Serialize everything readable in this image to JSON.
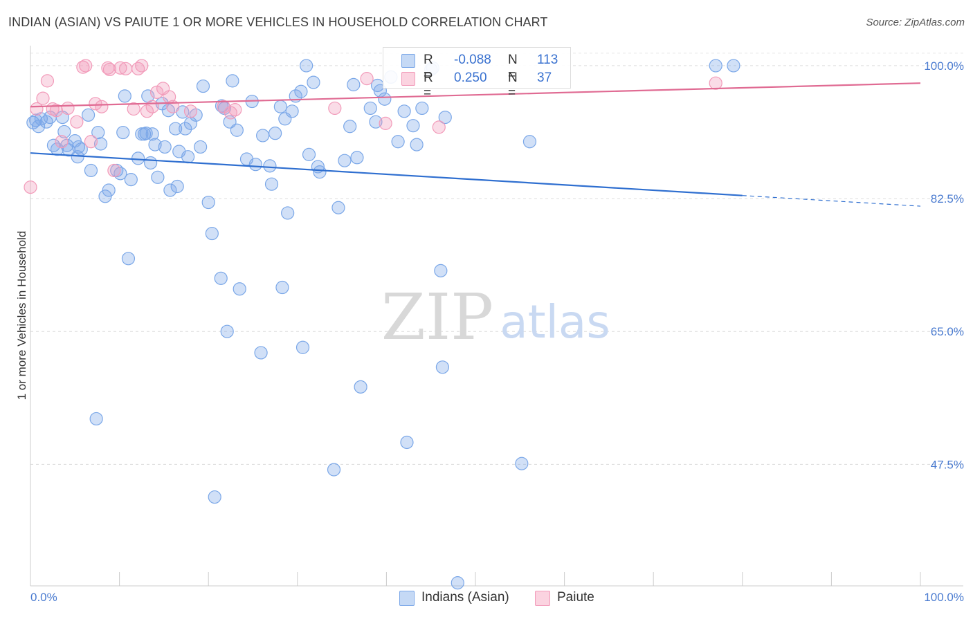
{
  "header": {
    "title": "INDIAN (ASIAN) VS PAIUTE 1 OR MORE VEHICLES IN HOUSEHOLD CORRELATION CHART",
    "source": "Source: ZipAtlas.com"
  },
  "watermark": {
    "zip": "ZIP",
    "atlas": "atlas"
  },
  "legend": {
    "rows": [
      {
        "r_label": "R =",
        "r_value": "-0.088",
        "n_label": "N =",
        "n_value": "113",
        "color": "#7aa7e8"
      },
      {
        "r_label": "R =",
        "r_value": "0.250",
        "n_label": "N =",
        "n_value": "37",
        "color": "#f29ab9"
      }
    ]
  },
  "chart_data": {
    "type": "scatter",
    "title": "INDIAN (ASIAN) VS PAIUTE 1 OR MORE VEHICLES IN HOUSEHOLD CORRELATION CHART",
    "xlabel": "",
    "ylabel": "1 or more Vehicles in Household",
    "xlim": [
      0,
      100
    ],
    "ylim": [
      31.5,
      103
    ],
    "x_tick_labels": [
      "0.0%",
      "100.0%"
    ],
    "y_ticks": [
      47.5,
      65.0,
      82.5,
      100.0
    ],
    "y_tick_labels": [
      "47.5%",
      "65.0%",
      "82.5%",
      "100.0%"
    ],
    "grid": true,
    "legend_position": "bottom-center",
    "series": [
      {
        "name": "Indians (Asian)",
        "color": "#7aa7e8",
        "line_color": "#2f6fd0",
        "trend": {
          "x0": 0,
          "y0": 88.5,
          "x1": 80,
          "y1": 82.9,
          "dash_to": 100,
          "dash_y": 81.5
        },
        "points": [
          [
            0.3,
            92.5
          ],
          [
            0.6,
            92.8
          ],
          [
            1.2,
            93.0
          ],
          [
            1.8,
            92.6
          ],
          [
            2.2,
            93.2
          ],
          [
            3.0,
            89.0
          ],
          [
            3.6,
            93.2
          ],
          [
            3.8,
            91.3
          ],
          [
            4.1,
            89.5
          ],
          [
            4.3,
            88.9
          ],
          [
            5.0,
            90.1
          ],
          [
            5.3,
            88.0
          ],
          [
            5.7,
            89.0
          ],
          [
            6.5,
            93.5
          ],
          [
            6.8,
            86.2
          ],
          [
            7.6,
            91.2
          ],
          [
            7.9,
            89.7
          ],
          [
            8.4,
            82.8
          ],
          [
            8.8,
            83.6
          ],
          [
            9.7,
            86.2
          ],
          [
            10.1,
            85.8
          ],
          [
            10.4,
            91.2
          ],
          [
            10.6,
            96.0
          ],
          [
            11.0,
            74.6
          ],
          [
            11.3,
            85.0
          ],
          [
            12.1,
            87.8
          ],
          [
            12.5,
            91.0
          ],
          [
            12.8,
            91.0
          ],
          [
            13.0,
            91.1
          ],
          [
            13.2,
            96.0
          ],
          [
            13.5,
            87.2
          ],
          [
            13.7,
            91.0
          ],
          [
            14.0,
            89.6
          ],
          [
            14.3,
            85.3
          ],
          [
            14.8,
            95.0
          ],
          [
            15.1,
            89.3
          ],
          [
            15.5,
            94.1
          ],
          [
            15.7,
            83.6
          ],
          [
            16.3,
            91.7
          ],
          [
            16.7,
            88.7
          ],
          [
            17.1,
            93.9
          ],
          [
            17.4,
            91.7
          ],
          [
            17.7,
            88.0
          ],
          [
            18.0,
            92.4
          ],
          [
            18.6,
            93.5
          ],
          [
            19.1,
            89.3
          ],
          [
            19.4,
            97.3
          ],
          [
            20.0,
            82.0
          ],
          [
            20.4,
            77.9
          ],
          [
            21.4,
            72.0
          ],
          [
            21.5,
            94.7
          ],
          [
            21.8,
            94.4
          ],
          [
            22.1,
            65.0
          ],
          [
            22.4,
            92.6
          ],
          [
            22.7,
            98.0
          ],
          [
            23.2,
            91.5
          ],
          [
            23.5,
            70.6
          ],
          [
            24.3,
            87.7
          ],
          [
            24.9,
            95.3
          ],
          [
            25.3,
            87.0
          ],
          [
            25.9,
            62.2
          ],
          [
            26.1,
            90.8
          ],
          [
            26.9,
            86.8
          ],
          [
            27.1,
            84.4
          ],
          [
            27.5,
            91.1
          ],
          [
            28.1,
            94.6
          ],
          [
            28.3,
            70.8
          ],
          [
            28.6,
            93.0
          ],
          [
            28.9,
            80.6
          ],
          [
            29.4,
            94.0
          ],
          [
            29.8,
            96.0
          ],
          [
            30.4,
            96.6
          ],
          [
            30.6,
            62.9
          ],
          [
            31.0,
            100.0
          ],
          [
            31.3,
            88.3
          ],
          [
            31.8,
            97.8
          ],
          [
            32.3,
            86.7
          ],
          [
            32.5,
            86.0
          ],
          [
            34.1,
            46.8
          ],
          [
            34.6,
            81.3
          ],
          [
            35.3,
            87.5
          ],
          [
            35.9,
            92.0
          ],
          [
            36.3,
            97.5
          ],
          [
            36.7,
            87.9
          ],
          [
            37.1,
            57.7
          ],
          [
            38.2,
            94.4
          ],
          [
            38.8,
            92.6
          ],
          [
            39.0,
            97.4
          ],
          [
            39.3,
            96.7
          ],
          [
            39.8,
            95.6
          ],
          [
            40.5,
            98.5
          ],
          [
            41.3,
            90.0
          ],
          [
            42.0,
            94.0
          ],
          [
            42.3,
            50.4
          ],
          [
            43.0,
            92.1
          ],
          [
            43.4,
            89.6
          ],
          [
            44.0,
            94.4
          ],
          [
            45.0,
            99.5
          ],
          [
            45.2,
            99.7
          ],
          [
            46.1,
            73.0
          ],
          [
            46.3,
            60.3
          ],
          [
            46.6,
            93.2
          ],
          [
            48.0,
            31.9
          ],
          [
            55.2,
            47.6
          ],
          [
            56.1,
            90.0
          ],
          [
            77.0,
            100.0
          ],
          [
            79.0,
            100.0
          ],
          [
            7.4,
            53.5
          ],
          [
            20.7,
            43.2
          ],
          [
            16.5,
            84.1
          ],
          [
            5.4,
            89.3
          ],
          [
            2.6,
            89.5
          ],
          [
            0.9,
            92.0
          ]
        ]
      },
      {
        "name": "Paiute",
        "color": "#f29ab9",
        "line_color": "#e06b93",
        "trend": {
          "x0": 0,
          "y0": 94.6,
          "x1": 100,
          "y1": 97.7
        },
        "points": [
          [
            0.0,
            84.0
          ],
          [
            0.7,
            94.3
          ],
          [
            1.4,
            95.7
          ],
          [
            1.9,
            98.0
          ],
          [
            2.5,
            94.3
          ],
          [
            2.9,
            94.1
          ],
          [
            3.5,
            90.0
          ],
          [
            4.2,
            94.4
          ],
          [
            5.2,
            92.6
          ],
          [
            5.9,
            99.8
          ],
          [
            6.2,
            100.0
          ],
          [
            6.8,
            90.0
          ],
          [
            7.3,
            95.0
          ],
          [
            8.0,
            94.6
          ],
          [
            8.7,
            99.7
          ],
          [
            8.9,
            99.5
          ],
          [
            9.4,
            86.2
          ],
          [
            10.1,
            99.7
          ],
          [
            10.7,
            99.6
          ],
          [
            11.6,
            94.3
          ],
          [
            12.1,
            99.6
          ],
          [
            12.5,
            100.0
          ],
          [
            13.1,
            94.0
          ],
          [
            13.7,
            94.6
          ],
          [
            14.2,
            96.5
          ],
          [
            14.9,
            97.0
          ],
          [
            15.6,
            95.9
          ],
          [
            16.0,
            94.6
          ],
          [
            18.0,
            94.0
          ],
          [
            21.7,
            94.6
          ],
          [
            22.5,
            93.8
          ],
          [
            23.0,
            94.2
          ],
          [
            34.2,
            94.4
          ],
          [
            37.8,
            98.3
          ],
          [
            39.9,
            92.4
          ],
          [
            45.9,
            91.9
          ],
          [
            77.0,
            97.7
          ]
        ]
      }
    ]
  }
}
